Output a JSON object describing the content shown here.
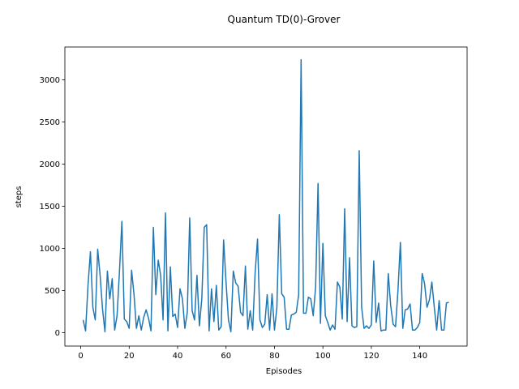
{
  "chart_data": {
    "type": "line",
    "title": "Quantum TD(0)-Grover",
    "xlabel": "Episodes",
    "ylabel": "steps",
    "xlim": [
      -6.55,
      159.55
    ],
    "ylim": [
      -160,
      3390
    ],
    "xticks": [
      0,
      20,
      40,
      60,
      80,
      100,
      120,
      140
    ],
    "yticks": [
      0,
      500,
      1000,
      1500,
      2000,
      2500,
      3000
    ],
    "grid": false,
    "series": [
      {
        "color": "#1f77b4",
        "x": [
          1,
          2,
          3,
          4,
          5,
          6,
          7,
          8,
          9,
          10,
          11,
          12,
          13,
          14,
          15,
          16,
          17,
          18,
          19,
          20,
          21,
          22,
          23,
          24,
          25,
          26,
          27,
          28,
          29,
          30,
          31,
          32,
          33,
          34,
          35,
          36,
          37,
          38,
          39,
          40,
          41,
          42,
          43,
          44,
          45,
          46,
          47,
          48,
          49,
          50,
          51,
          52,
          53,
          54,
          55,
          56,
          57,
          58,
          59,
          60,
          61,
          62,
          63,
          64,
          65,
          66,
          67,
          68,
          69,
          70,
          71,
          72,
          73,
          74,
          75,
          76,
          77,
          78,
          79,
          80,
          81,
          82,
          83,
          84,
          85,
          86,
          87,
          88,
          89,
          90,
          91,
          92,
          93,
          94,
          95,
          96,
          97,
          98,
          99,
          100,
          101,
          102,
          103,
          104,
          105,
          106,
          107,
          108,
          109,
          110,
          111,
          112,
          113,
          114,
          115,
          116,
          117,
          118,
          119,
          120,
          121,
          122,
          123,
          124,
          125,
          126,
          127,
          128,
          129,
          130,
          131,
          132,
          133,
          134,
          135,
          136,
          137,
          138,
          139,
          140,
          141,
          142,
          143,
          144,
          145,
          146,
          147,
          148,
          149,
          150,
          151,
          152
        ],
        "y": [
          150,
          20,
          560,
          960,
          300,
          150,
          990,
          680,
          280,
          10,
          730,
          400,
          640,
          30,
          200,
          730,
          1320,
          160,
          130,
          50,
          740,
          450,
          50,
          200,
          30,
          180,
          270,
          170,
          20,
          1250,
          450,
          860,
          680,
          150,
          1420,
          20,
          780,
          190,
          220,
          60,
          520,
          400,
          50,
          240,
          1360,
          260,
          150,
          680,
          80,
          400,
          1250,
          1280,
          20,
          520,
          130,
          560,
          30,
          70,
          1100,
          600,
          150,
          10,
          730,
          590,
          550,
          240,
          200,
          790,
          40,
          260,
          30,
          700,
          1110,
          150,
          60,
          100,
          450,
          30,
          460,
          30,
          300,
          1400,
          460,
          420,
          40,
          40,
          210,
          220,
          240,
          450,
          3240,
          230,
          230,
          420,
          400,
          200,
          540,
          1770,
          110,
          1060,
          200,
          120,
          30,
          90,
          40,
          600,
          540,
          160,
          1470,
          130,
          890,
          80,
          60,
          70,
          2160,
          300,
          50,
          80,
          50,
          90,
          850,
          120,
          350,
          20,
          30,
          30,
          700,
          320,
          100,
          70,
          500,
          1070,
          50,
          270,
          280,
          340,
          30,
          30,
          60,
          120,
          700,
          580,
          300,
          390,
          600,
          300,
          30,
          380,
          30,
          30,
          350,
          360
        ]
      }
    ]
  }
}
